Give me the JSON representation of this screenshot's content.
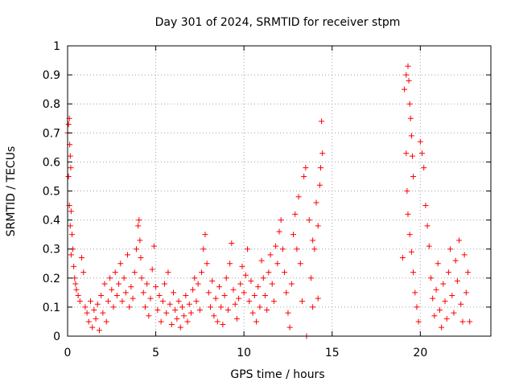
{
  "chart_data": {
    "type": "scatter",
    "title": "Day 301 of 2024, SRMTID for receiver stpm",
    "xlabel": "GPS time / hours",
    "ylabel": "SRMTID / TECUs",
    "xlim": [
      0,
      24
    ],
    "ylim": [
      0,
      1
    ],
    "xticks": [
      0,
      5,
      10,
      15,
      20
    ],
    "xtick_labels": [
      "0",
      "5",
      "10",
      "15",
      "20"
    ],
    "yticks": [
      0,
      0.1,
      0.2,
      0.3,
      0.4,
      0.5,
      0.6,
      0.7,
      0.8,
      0.9,
      1
    ],
    "ytick_labels": [
      "0",
      "0.1",
      "0.2",
      "0.3",
      "0.4",
      "0.5",
      "0.6",
      "0.7",
      "0.8",
      "0.9",
      "1"
    ],
    "grid": true,
    "marker": "+",
    "series": [
      {
        "name": "stpm",
        "color": "#ff0000",
        "points": [
          [
            0.0,
            0.7
          ],
          [
            0.05,
            0.73
          ],
          [
            0.1,
            0.75
          ],
          [
            0.12,
            0.66
          ],
          [
            0.15,
            0.62
          ],
          [
            0.18,
            0.58
          ],
          [
            0.05,
            0.55
          ],
          [
            0.1,
            0.45
          ],
          [
            0.2,
            0.43
          ],
          [
            0.15,
            0.38
          ],
          [
            0.25,
            0.35
          ],
          [
            0.3,
            0.3
          ],
          [
            0.2,
            0.28
          ],
          [
            0.35,
            0.24
          ],
          [
            0.4,
            0.2
          ],
          [
            0.45,
            0.18
          ],
          [
            0.5,
            0.16
          ],
          [
            0.6,
            0.14
          ],
          [
            0.7,
            0.12
          ],
          [
            0.8,
            0.27
          ],
          [
            0.9,
            0.22
          ],
          [
            1.0,
            0.1
          ],
          [
            1.1,
            0.08
          ],
          [
            1.2,
            0.05
          ],
          [
            1.3,
            0.12
          ],
          [
            1.4,
            0.03
          ],
          [
            1.5,
            0.09
          ],
          [
            1.6,
            0.06
          ],
          [
            1.7,
            0.11
          ],
          [
            1.8,
            0.02
          ],
          [
            1.9,
            0.14
          ],
          [
            2.0,
            0.08
          ],
          [
            2.1,
            0.18
          ],
          [
            2.2,
            0.05
          ],
          [
            2.3,
            0.12
          ],
          [
            2.4,
            0.2
          ],
          [
            2.5,
            0.16
          ],
          [
            2.6,
            0.1
          ],
          [
            2.7,
            0.22
          ],
          [
            2.8,
            0.14
          ],
          [
            2.9,
            0.18
          ],
          [
            3.0,
            0.25
          ],
          [
            3.1,
            0.12
          ],
          [
            3.2,
            0.2
          ],
          [
            3.3,
            0.15
          ],
          [
            3.4,
            0.28
          ],
          [
            3.5,
            0.1
          ],
          [
            3.6,
            0.17
          ],
          [
            3.7,
            0.13
          ],
          [
            3.8,
            0.22
          ],
          [
            3.9,
            0.3
          ],
          [
            4.0,
            0.38
          ],
          [
            4.05,
            0.4
          ],
          [
            4.1,
            0.33
          ],
          [
            4.15,
            0.27
          ],
          [
            4.2,
            0.2
          ],
          [
            4.3,
            0.15
          ],
          [
            4.4,
            0.1
          ],
          [
            4.5,
            0.18
          ],
          [
            4.6,
            0.07
          ],
          [
            4.7,
            0.13
          ],
          [
            4.8,
            0.23
          ],
          [
            4.9,
            0.31
          ],
          [
            5.0,
            0.17
          ],
          [
            5.1,
            0.09
          ],
          [
            5.2,
            0.14
          ],
          [
            5.3,
            0.05
          ],
          [
            5.4,
            0.12
          ],
          [
            5.5,
            0.18
          ],
          [
            5.6,
            0.08
          ],
          [
            5.7,
            0.22
          ],
          [
            5.8,
            0.11
          ],
          [
            5.9,
            0.04
          ],
          [
            6.0,
            0.15
          ],
          [
            6.1,
            0.09
          ],
          [
            6.2,
            0.06
          ],
          [
            6.3,
            0.12
          ],
          [
            6.4,
            0.03
          ],
          [
            6.5,
            0.1
          ],
          [
            6.6,
            0.07
          ],
          [
            6.7,
            0.14
          ],
          [
            6.8,
            0.05
          ],
          [
            6.9,
            0.11
          ],
          [
            7.0,
            0.08
          ],
          [
            7.1,
            0.16
          ],
          [
            7.2,
            0.2
          ],
          [
            7.3,
            0.12
          ],
          [
            7.4,
            0.18
          ],
          [
            7.5,
            0.09
          ],
          [
            7.6,
            0.22
          ],
          [
            7.7,
            0.3
          ],
          [
            7.8,
            0.35
          ],
          [
            7.9,
            0.25
          ],
          [
            8.0,
            0.15
          ],
          [
            8.1,
            0.1
          ],
          [
            8.2,
            0.19
          ],
          [
            8.3,
            0.07
          ],
          [
            8.4,
            0.13
          ],
          [
            8.5,
            0.05
          ],
          [
            8.6,
            0.17
          ],
          [
            8.7,
            0.1
          ],
          [
            8.8,
            0.04
          ],
          [
            8.9,
            0.14
          ],
          [
            9.0,
            0.2
          ],
          [
            9.1,
            0.09
          ],
          [
            9.2,
            0.25
          ],
          [
            9.3,
            0.32
          ],
          [
            9.4,
            0.16
          ],
          [
            9.5,
            0.11
          ],
          [
            9.6,
            0.06
          ],
          [
            9.7,
            0.13
          ],
          [
            9.8,
            0.18
          ],
          [
            9.9,
            0.24
          ],
          [
            10.0,
            0.15
          ],
          [
            10.1,
            0.21
          ],
          [
            10.2,
            0.3
          ],
          [
            10.3,
            0.12
          ],
          [
            10.4,
            0.19
          ],
          [
            10.5,
            0.08
          ],
          [
            10.6,
            0.14
          ],
          [
            10.7,
            0.05
          ],
          [
            10.8,
            0.17
          ],
          [
            10.9,
            0.1
          ],
          [
            11.0,
            0.26
          ],
          [
            11.1,
            0.2
          ],
          [
            11.2,
            0.14
          ],
          [
            11.3,
            0.09
          ],
          [
            11.4,
            0.22
          ],
          [
            11.5,
            0.28
          ],
          [
            11.6,
            0.18
          ],
          [
            11.7,
            0.12
          ],
          [
            11.8,
            0.31
          ],
          [
            11.9,
            0.25
          ],
          [
            12.0,
            0.36
          ],
          [
            12.1,
            0.4
          ],
          [
            12.2,
            0.3
          ],
          [
            12.3,
            0.22
          ],
          [
            12.4,
            0.15
          ],
          [
            12.5,
            0.08
          ],
          [
            12.6,
            0.03
          ],
          [
            12.7,
            0.18
          ],
          [
            12.8,
            0.35
          ],
          [
            12.9,
            0.42
          ],
          [
            13.0,
            0.3
          ],
          [
            13.1,
            0.48
          ],
          [
            13.2,
            0.25
          ],
          [
            13.3,
            0.12
          ],
          [
            13.4,
            0.55
          ],
          [
            13.5,
            0.58
          ],
          [
            13.55,
            0.0
          ],
          [
            13.7,
            0.4
          ],
          [
            13.8,
            0.2
          ],
          [
            13.9,
            0.1
          ],
          [
            14.0,
            0.3
          ],
          [
            14.1,
            0.46
          ],
          [
            14.2,
            0.38
          ],
          [
            14.3,
            0.52
          ],
          [
            14.35,
            0.58
          ],
          [
            14.4,
            0.74
          ],
          [
            14.45,
            0.63
          ],
          [
            14.2,
            0.13
          ],
          [
            13.9,
            0.33
          ],
          [
            19.0,
            0.27
          ],
          [
            19.1,
            0.85
          ],
          [
            19.2,
            0.9
          ],
          [
            19.3,
            0.93
          ],
          [
            19.35,
            0.88
          ],
          [
            19.4,
            0.8
          ],
          [
            19.45,
            0.75
          ],
          [
            19.5,
            0.69
          ],
          [
            19.55,
            0.62
          ],
          [
            19.6,
            0.55
          ],
          [
            19.2,
            0.63
          ],
          [
            19.25,
            0.5
          ],
          [
            19.3,
            0.42
          ],
          [
            19.4,
            0.35
          ],
          [
            19.5,
            0.29
          ],
          [
            19.6,
            0.22
          ],
          [
            19.7,
            0.15
          ],
          [
            19.8,
            0.1
          ],
          [
            19.9,
            0.05
          ],
          [
            20.0,
            0.67
          ],
          [
            20.1,
            0.63
          ],
          [
            20.2,
            0.58
          ],
          [
            20.3,
            0.45
          ],
          [
            20.4,
            0.38
          ],
          [
            20.5,
            0.31
          ],
          [
            20.6,
            0.2
          ],
          [
            20.7,
            0.13
          ],
          [
            20.8,
            0.07
          ],
          [
            20.9,
            0.16
          ],
          [
            21.0,
            0.25
          ],
          [
            21.1,
            0.09
          ],
          [
            21.2,
            0.03
          ],
          [
            21.3,
            0.18
          ],
          [
            21.4,
            0.12
          ],
          [
            21.5,
            0.06
          ],
          [
            21.6,
            0.22
          ],
          [
            21.7,
            0.3
          ],
          [
            21.8,
            0.14
          ],
          [
            21.9,
            0.08
          ],
          [
            22.0,
            0.26
          ],
          [
            22.1,
            0.19
          ],
          [
            22.2,
            0.33
          ],
          [
            22.3,
            0.11
          ],
          [
            22.4,
            0.05
          ],
          [
            22.5,
            0.28
          ],
          [
            22.6,
            0.15
          ],
          [
            22.7,
            0.22
          ],
          [
            22.8,
            0.05
          ]
        ]
      }
    ]
  }
}
